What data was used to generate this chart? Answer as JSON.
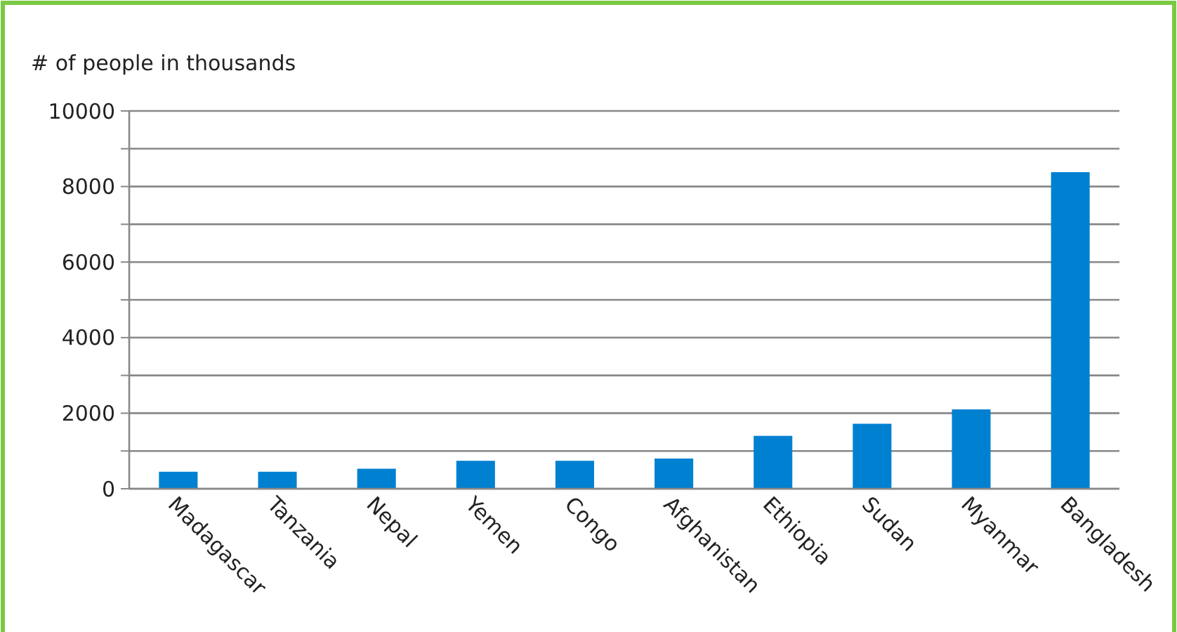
{
  "chart_data": {
    "type": "bar",
    "ylabel": "# of people in thousands",
    "categories": [
      "Madagascar",
      "Tanzania",
      "Nepal",
      "Yemen",
      "Congo",
      "Afghanistan",
      "Ethiopia",
      "Sudan",
      "Myanmar",
      "Bangladesh"
    ],
    "values": [
      450,
      450,
      530,
      740,
      740,
      800,
      1400,
      1720,
      2100,
      8380
    ],
    "color": "#0080d0",
    "ylim": [
      0,
      10000
    ],
    "yticks": [
      0,
      {
        "value": 1000,
        "label": null
      },
      2000,
      {
        "value": 3000,
        "label": null
      },
      4000,
      {
        "value": 5000,
        "label": null
      },
      6000,
      {
        "value": 7000,
        "label": null
      },
      8000,
      {
        "value": 9000,
        "label": null
      },
      10000
    ],
    "grid": "y"
  }
}
